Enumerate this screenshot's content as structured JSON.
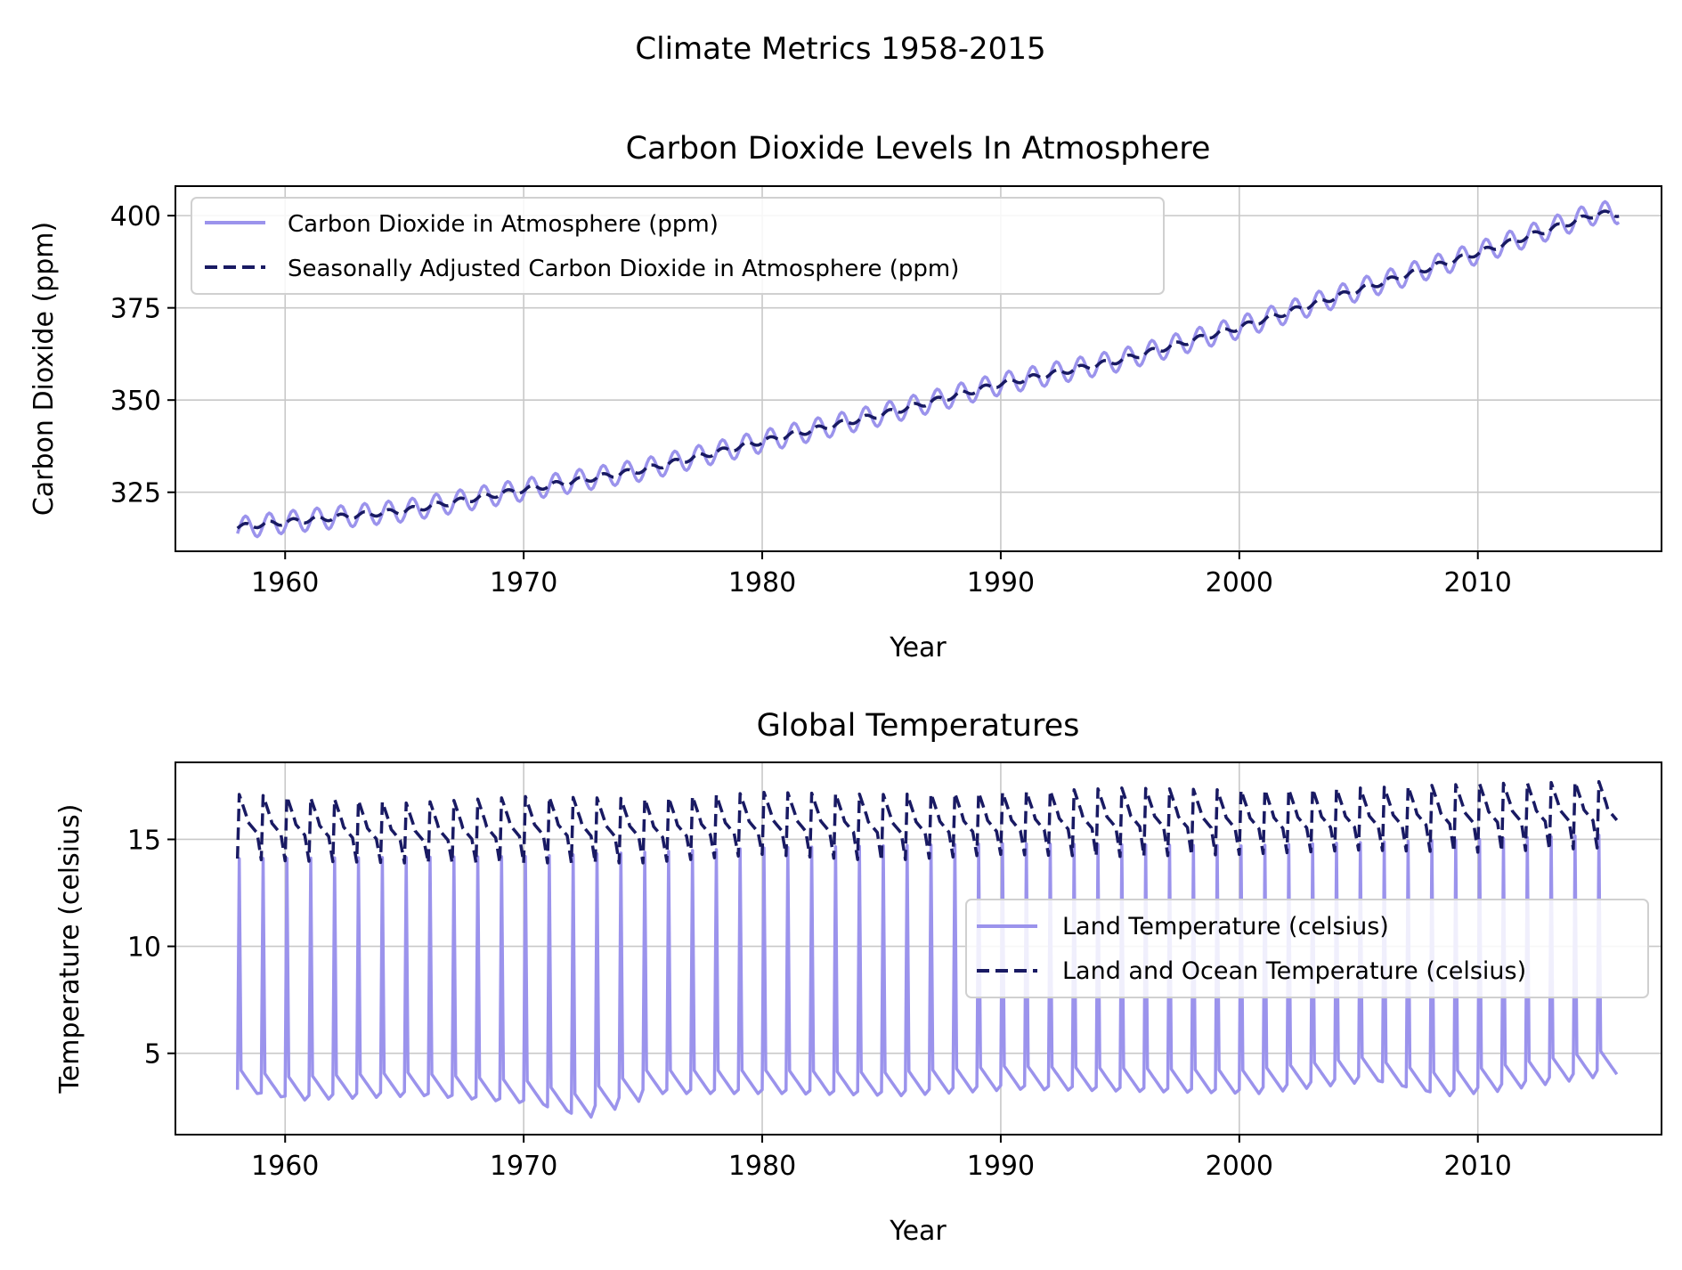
{
  "figure": {
    "suptitle": "Climate Metrics 1958-2015"
  },
  "colors": {
    "light_series": "#9b93ec",
    "dark_series": "#191a63",
    "grid": "#c8c8c8",
    "axis": "#000000"
  },
  "chart_data": [
    {
      "type": "line",
      "title": "Carbon Dioxide Levels In Atmosphere",
      "xlabel": "Year",
      "ylabel": "Carbon Dioxide (ppm)",
      "xlim": [
        1955.4,
        2017.7
      ],
      "ylim": [
        309,
        408
      ],
      "xticks": [
        1960,
        1970,
        1980,
        1990,
        2000,
        2010
      ],
      "yticks": [
        325,
        350,
        375,
        400
      ],
      "grid": true,
      "legend_position": "upper-left",
      "x_range": [
        1958,
        2015
      ],
      "seasonal_amplitude": 3,
      "series": [
        {
          "name": "Carbon Dioxide in Atmosphere (ppm)",
          "style": "solid",
          "color": "#9b93ec",
          "annual_mean": {
            "years": [
              1958,
              1960,
              1965,
              1970,
              1975,
              1980,
              1985,
              1990,
              1995,
              2000,
              2005,
              2010,
              2015
            ],
            "values": [
              315.3,
              316.9,
              320.0,
              325.7,
              331.1,
              338.8,
              346.1,
              354.4,
              360.8,
              369.7,
              379.9,
              389.9,
              400.8
            ]
          }
        },
        {
          "name": "Seasonally Adjusted Carbon Dioxide in Atmosphere (ppm)",
          "style": "dashed",
          "color": "#191a63",
          "annual_mean": {
            "years": [
              1958,
              1960,
              1965,
              1970,
              1975,
              1980,
              1985,
              1990,
              1995,
              2000,
              2005,
              2010,
              2015
            ],
            "values": [
              315.6,
              316.9,
              320.0,
              325.7,
              331.1,
              338.8,
              346.1,
              354.4,
              360.8,
              369.7,
              379.9,
              389.9,
              400.5
            ]
          }
        }
      ]
    },
    {
      "type": "line",
      "title": "Global Temperatures",
      "xlabel": "Year",
      "ylabel": "Temperature (celsius)",
      "xlim": [
        1955.4,
        2017.7
      ],
      "ylim": [
        1.2,
        18.6
      ],
      "xticks": [
        1960,
        1970,
        1980,
        1990,
        2000,
        2010
      ],
      "yticks": [
        5,
        10,
        15
      ],
      "grid": true,
      "legend_position": "center-right",
      "x_range": [
        1958,
        2015
      ],
      "series": [
        {
          "name": "Land Temperature (celsius)",
          "style": "solid",
          "color": "#9b93ec",
          "yearly_low": {
            "years": [
              1958,
              1960,
              1965,
              1970,
              1972,
              1975,
              1980,
              1985,
              1990,
              1995,
              2000,
              2005,
              2008,
              2010,
              2015
            ],
            "values": [
              3.0,
              2.7,
              2.9,
              2.5,
              1.9,
              3.0,
              3.0,
              2.9,
              3.2,
              3.1,
              3.0,
              3.6,
              2.9,
              3.1,
              3.9
            ]
          },
          "yearly_high": {
            "years": [
              1958,
              1970,
              1980,
              1990,
              2000,
              2010,
              2015
            ],
            "values": [
              14.1,
              14.2,
              14.6,
              14.8,
              14.7,
              15.0,
              15.2
            ]
          }
        },
        {
          "name": "Land and Ocean Temperature (celsius)",
          "style": "dashed",
          "color": "#191a63",
          "yearly_low": {
            "years": [
              1958,
              1960,
              1965,
              1970,
              1975,
              1980,
              1985,
              1990,
              1995,
              2000,
              2005,
              2010,
              2015
            ],
            "values": [
              13.8,
              13.7,
              13.6,
              13.6,
              13.6,
              14.0,
              13.7,
              14.0,
              13.9,
              14.0,
              14.2,
              14.1,
              14.3
            ]
          },
          "yearly_high": {
            "years": [
              1958,
              1960,
              1965,
              1970,
              1975,
              1980,
              1985,
              1990,
              1995,
              2000,
              2005,
              2010,
              2015
            ],
            "values": [
              17.1,
              17.0,
              16.7,
              17.0,
              16.9,
              17.2,
              17.1,
              17.2,
              17.4,
              17.3,
              17.4,
              17.6,
              17.7
            ]
          }
        }
      ]
    }
  ]
}
